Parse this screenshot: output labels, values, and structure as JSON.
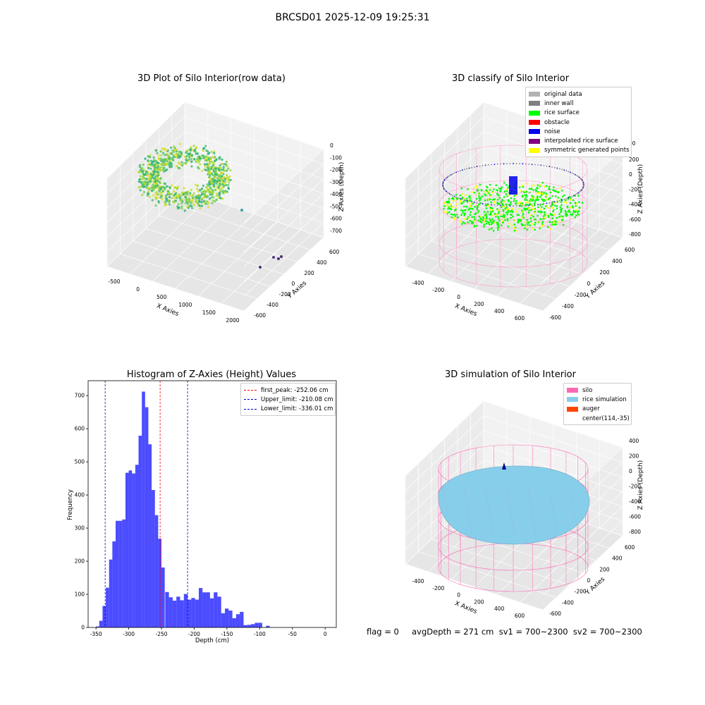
{
  "suptitle": "BRCSD01 2025-12-09 19:25:31",
  "footer": "flag = 0     avgDepth = 271 cm  sv1 = 700~2300  sv2 = 700~2300",
  "chart_data": [
    {
      "type": "scatter3d",
      "title": "3D Plot of Silo Interior(row data)",
      "xlabel": "X Axies",
      "ylabel": "Y Axies",
      "zlabel": "Z Axies (Depth)",
      "xticks": [
        "-500",
        "0",
        "500",
        "1000",
        "1500",
        "2000"
      ],
      "yticks": [
        "-600",
        "-400",
        "-200",
        "0",
        "200",
        "400",
        "600"
      ],
      "zticks": [
        "0",
        "-100",
        "-200",
        "-300",
        "-400",
        "-500",
        "-600",
        "-700"
      ],
      "colormap": "viridis"
    },
    {
      "type": "scatter3d",
      "title": "3D classify of Silo Interior",
      "xlabel": "X Axies",
      "ylabel": "Y Axies",
      "zlabel": "Z Axies (Depth)",
      "xticks": [
        "-400",
        "-200",
        "0",
        "200",
        "400",
        "600"
      ],
      "yticks": [
        "-600",
        "-400",
        "-200",
        "0",
        "200",
        "400",
        "600"
      ],
      "zticks": [
        "200",
        "0",
        "-200",
        "-400",
        "-600",
        "-800"
      ],
      "ztop_partial": "00",
      "legend": [
        {
          "label": "original data",
          "color": "#b3b3b3"
        },
        {
          "label": "inner wall",
          "color": "#808080"
        },
        {
          "label": "rice surface",
          "color": "#00ff00"
        },
        {
          "label": "obstacle",
          "color": "#ff0000"
        },
        {
          "label": "noise",
          "color": "#0000ee"
        },
        {
          "label": "interpolated rice surface",
          "color": "#800080"
        },
        {
          "label": "symmetric generated points",
          "color": "#ffff00"
        }
      ]
    },
    {
      "type": "bar",
      "title": "Histogram of Z-Axies (Height) Values",
      "xlabel": "Depth (cm)",
      "ylabel": "Frequency",
      "xlim": [
        -362,
        17
      ],
      "ylim": [
        0,
        745
      ],
      "xticks": [
        -350,
        -300,
        -250,
        -200,
        -150,
        -100,
        -50,
        0
      ],
      "yticks": [
        0,
        100,
        200,
        300,
        400,
        500,
        600,
        700
      ],
      "color": "#0000ff",
      "bin_width": 5,
      "bins": [
        [
          -350,
          3
        ],
        [
          -345,
          20
        ],
        [
          -340,
          65
        ],
        [
          -335,
          120
        ],
        [
          -330,
          205
        ],
        [
          -325,
          260
        ],
        [
          -320,
          322
        ],
        [
          -315,
          322
        ],
        [
          -310,
          326
        ],
        [
          -305,
          467
        ],
        [
          -300,
          474
        ],
        [
          -295,
          465
        ],
        [
          -290,
          491
        ],
        [
          -285,
          579
        ],
        [
          -280,
          712
        ],
        [
          -275,
          665
        ],
        [
          -270,
          553
        ],
        [
          -265,
          415
        ],
        [
          -260,
          339
        ],
        [
          -255,
          268
        ],
        [
          -250,
          181
        ],
        [
          -245,
          107
        ],
        [
          -240,
          91
        ],
        [
          -235,
          81
        ],
        [
          -230,
          93
        ],
        [
          -225,
          82
        ],
        [
          -220,
          101
        ],
        [
          -215,
          84
        ],
        [
          -210,
          89
        ],
        [
          -205,
          84
        ],
        [
          -200,
          119
        ],
        [
          -195,
          106
        ],
        [
          -190,
          106
        ],
        [
          -185,
          88
        ],
        [
          -180,
          106
        ],
        [
          -175,
          93
        ],
        [
          -170,
          43
        ],
        [
          -165,
          57
        ],
        [
          -160,
          51
        ],
        [
          -155,
          28
        ],
        [
          -150,
          40
        ],
        [
          -145,
          47
        ],
        [
          -140,
          7
        ],
        [
          -135,
          8
        ],
        [
          -130,
          10
        ],
        [
          -125,
          14
        ],
        [
          -120,
          14
        ],
        [
          -115,
          0
        ],
        [
          -110,
          5
        ]
      ],
      "bin_offset": 170,
      "vlines": [
        {
          "label": "first_peak: -252.06 cm",
          "x": -252.06,
          "color": "#ff0000"
        },
        {
          "label": "Upper_limit: -210.08 cm",
          "x": -210.08,
          "color": "#0000cc"
        },
        {
          "label": "Lower_limit: -336.01 cm",
          "x": -336.01,
          "color": "#0000cc"
        }
      ]
    },
    {
      "type": "surface3d",
      "title": "3D simulation of Silo Interior",
      "xlabel": "X Axies",
      "ylabel": "Y Axies",
      "zlabel": "Z Axies (Depth)",
      "xticks": [
        "-400",
        "-200",
        "0",
        "200",
        "400",
        "600"
      ],
      "yticks": [
        "-600",
        "-400",
        "-200",
        "0",
        "200",
        "400",
        "600"
      ],
      "zticks": [
        "400",
        "200",
        "0",
        "-200",
        "-400",
        "-600",
        "-800"
      ],
      "legend": [
        {
          "label": "silo",
          "color": "#ff69b4"
        },
        {
          "label": "rice simulation",
          "color": "#87ceeb"
        },
        {
          "label": "auger",
          "color": "#ff4500"
        },
        {
          "label": "center(114,-35)",
          "color": ""
        }
      ]
    }
  ]
}
